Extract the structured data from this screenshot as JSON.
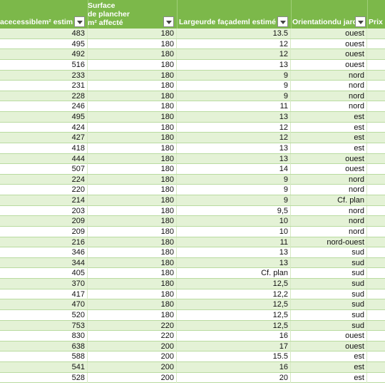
{
  "columns": [
    {
      "label": "acecessiblem² estim"
    },
    {
      "label_lines": [
        "Surface",
        "de plancher",
        "m² affecté"
      ]
    },
    {
      "label": "Largeurde façademl estimé"
    },
    {
      "label": "Orientationdu jard"
    },
    {
      "label": "Prix c"
    }
  ],
  "rows": [
    [
      "483",
      "180",
      "13.5",
      "ouest"
    ],
    [
      "495",
      "180",
      "12",
      "ouest"
    ],
    [
      "492",
      "180",
      "12",
      "ouest"
    ],
    [
      "516",
      "180",
      "13",
      "ouest"
    ],
    [
      "233",
      "180",
      "9",
      "nord"
    ],
    [
      "231",
      "180",
      "9",
      "nord"
    ],
    [
      "228",
      "180",
      "9",
      "nord"
    ],
    [
      "246",
      "180",
      "11",
      "nord"
    ],
    [
      "495",
      "180",
      "13",
      "est"
    ],
    [
      "424",
      "180",
      "12",
      "est"
    ],
    [
      "427",
      "180",
      "12",
      "est"
    ],
    [
      "418",
      "180",
      "13",
      "est"
    ],
    [
      "444",
      "180",
      "13",
      "ouest"
    ],
    [
      "507",
      "180",
      "14",
      "ouest"
    ],
    [
      "224",
      "180",
      "9",
      "nord"
    ],
    [
      "220",
      "180",
      "9",
      "nord"
    ],
    [
      "214",
      "180",
      "9",
      "Cf. plan"
    ],
    [
      "203",
      "180",
      "9,5",
      "nord"
    ],
    [
      "209",
      "180",
      "10",
      "nord"
    ],
    [
      "209",
      "180",
      "10",
      "nord"
    ],
    [
      "216",
      "180",
      "11",
      "nord-ouest"
    ],
    [
      "346",
      "180",
      "13",
      "sud"
    ],
    [
      "344",
      "180",
      "13",
      "sud"
    ],
    [
      "405",
      "180",
      "Cf. plan",
      "sud"
    ],
    [
      "370",
      "180",
      "12,5",
      "sud"
    ],
    [
      "417",
      "180",
      "12,2",
      "sud"
    ],
    [
      "470",
      "180",
      "12,5",
      "sud"
    ],
    [
      "520",
      "180",
      "12,5",
      "sud"
    ],
    [
      "753",
      "220",
      "12,5",
      "sud"
    ],
    [
      "830",
      "220",
      "16",
      "ouest"
    ],
    [
      "638",
      "200",
      "17",
      "ouest"
    ],
    [
      "588",
      "200",
      "15.5",
      "est"
    ],
    [
      "541",
      "200",
      "16",
      "est"
    ],
    [
      "528",
      "200",
      "20",
      "est"
    ]
  ],
  "colors": {
    "header_bg": "#7cb84a",
    "band": "#e4f2d6",
    "filter_icon": "dropdown-arrow-icon"
  }
}
